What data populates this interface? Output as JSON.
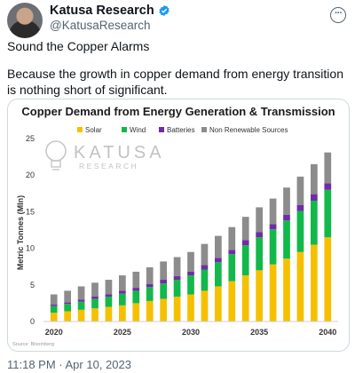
{
  "tweet": {
    "author_name": "Katusa Research",
    "author_handle": "@KatusaResearch",
    "paragraph_1": "Sound the Copper Alarms",
    "paragraph_2": "Because the growth in copper demand from energy transition is nothing short of significant.",
    "timestamp": "11:18 PM · Apr 10, 2023",
    "more_icon": "ellipsis-icon",
    "verified_icon": "verified-badge-icon",
    "verified_color": "#1d9bf0"
  },
  "watermark": {
    "line1": "KATUSA",
    "line2": "RESEARCH"
  },
  "chart_data": {
    "type": "bar",
    "stacked": true,
    "title": "Copper Demand from Energy Generation & Transmission",
    "ylabel": "Metric Tonnes (Mln)",
    "xlabel": "",
    "ylim": [
      0,
      25
    ],
    "yticks": [
      0,
      5,
      10,
      15,
      20,
      25
    ],
    "grid": false,
    "legend_position": "top",
    "source": "Source: Bloomberg",
    "categories": [
      "2020",
      "2021",
      "2022",
      "2023",
      "2024",
      "2025",
      "2026",
      "2027",
      "2028",
      "2029",
      "2030",
      "2031",
      "2032",
      "2033",
      "2034",
      "2035",
      "2036",
      "2037",
      "2038",
      "2039",
      "2040"
    ],
    "xtick_labels": [
      "2020",
      "",
      "",
      "",
      "",
      "2025",
      "",
      "",
      "",
      "",
      "2030",
      "",
      "",
      "",
      "",
      "2035",
      "",
      "",
      "",
      "",
      "2040"
    ],
    "series": [
      {
        "name": "Solar",
        "color": "#f5c000",
        "values": [
          1.2,
          1.4,
          1.6,
          1.8,
          2.0,
          2.2,
          2.5,
          2.8,
          3.1,
          3.4,
          3.7,
          4.2,
          4.8,
          5.5,
          6.3,
          7.0,
          7.8,
          8.6,
          9.5,
          10.5,
          11.5
        ]
      },
      {
        "name": "Wind",
        "color": "#13b84a",
        "values": [
          0.9,
          1.0,
          1.1,
          1.3,
          1.4,
          1.6,
          1.7,
          1.9,
          2.1,
          2.3,
          2.6,
          2.9,
          3.3,
          3.7,
          4.1,
          4.5,
          4.8,
          5.2,
          5.6,
          6.0,
          6.5
        ]
      },
      {
        "name": "Batteries",
        "color": "#6f2ca8",
        "values": [
          0.2,
          0.2,
          0.3,
          0.3,
          0.3,
          0.4,
          0.4,
          0.4,
          0.5,
          0.5,
          0.5,
          0.6,
          0.6,
          0.6,
          0.7,
          0.7,
          0.7,
          0.8,
          0.8,
          0.9,
          0.9
        ]
      },
      {
        "name": "Non Renewable Sources",
        "color": "#8c8c8c",
        "values": [
          1.4,
          1.6,
          1.8,
          1.9,
          2.0,
          2.1,
          2.2,
          2.3,
          2.5,
          2.6,
          2.7,
          2.9,
          3.0,
          3.1,
          3.2,
          3.4,
          3.5,
          3.7,
          3.9,
          4.1,
          4.2
        ]
      }
    ]
  }
}
